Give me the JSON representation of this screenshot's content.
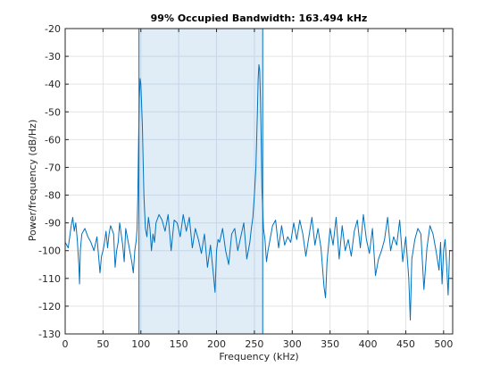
{
  "chart_data": {
    "type": "line",
    "title": "99% Occupied Bandwidth: 163.494 kHz",
    "xlabel": "Frequency (kHz)",
    "ylabel": "Power/frequency (dB/Hz)",
    "xlim": [
      0,
      512
    ],
    "ylim": [
      -130,
      -20
    ],
    "xticks": [
      0,
      50,
      100,
      150,
      200,
      250,
      300,
      350,
      400,
      450,
      500
    ],
    "yticks": [
      -20,
      -30,
      -40,
      -50,
      -60,
      -70,
      -80,
      -90,
      -100,
      -110,
      -120,
      -130
    ],
    "grid": true,
    "occupied_band": {
      "start": 97.5,
      "end": 261.0
    },
    "colors": {
      "line": "#0072bd",
      "band_fill": "#dbe9f5",
      "band_edge": "#0072bd",
      "grid": "#e3e3e3",
      "axis": "#262626"
    },
    "series": [
      {
        "x": [
          0,
          4,
          8,
          10,
          12,
          14,
          16,
          18,
          19,
          20,
          22,
          26,
          30,
          34,
          38,
          42,
          46,
          48,
          50,
          52,
          54,
          56,
          58,
          60,
          64,
          66,
          68,
          70,
          72,
          74,
          76,
          78,
          80,
          84,
          88,
          90,
          92,
          94,
          95,
          96,
          97,
          98,
          99,
          100,
          102,
          104,
          106,
          108,
          110,
          112,
          114,
          116,
          118,
          120,
          124,
          128,
          132,
          136,
          140,
          144,
          148,
          152,
          156,
          160,
          164,
          168,
          172,
          176,
          180,
          184,
          188,
          192,
          196,
          198,
          200,
          202,
          204,
          208,
          212,
          216,
          220,
          224,
          228,
          232,
          236,
          240,
          244,
          246,
          248,
          250,
          252,
          254,
          255,
          256,
          257,
          258,
          259,
          260,
          262,
          264,
          266,
          268,
          270,
          274,
          278,
          282,
          286,
          290,
          294,
          298,
          302,
          306,
          310,
          314,
          318,
          322,
          326,
          330,
          334,
          338,
          342,
          344,
          346,
          350,
          354,
          358,
          362,
          366,
          370,
          374,
          378,
          382,
          386,
          390,
          394,
          398,
          402,
          406,
          410,
          414,
          418,
          422,
          426,
          430,
          434,
          438,
          442,
          446,
          450,
          454,
          456,
          458,
          462,
          466,
          470,
          474,
          478,
          482,
          486,
          490,
          494,
          496,
          498,
          500,
          502,
          504,
          506,
          508,
          510
        ],
        "y": [
          -97,
          -99,
          -91,
          -88,
          -93,
          -90,
          -96,
          -105,
          -112,
          -100,
          -94,
          -92,
          -95,
          -97,
          -100,
          -95,
          -108,
          -102,
          -100,
          -97,
          -93,
          -99,
          -94,
          -91,
          -94,
          -106,
          -100,
          -97,
          -90,
          -94,
          -98,
          -104,
          -92,
          -98,
          -104,
          -108,
          -100,
          -96,
          -92,
          -80,
          -60,
          -45,
          -38,
          -40,
          -55,
          -80,
          -92,
          -95,
          -88,
          -92,
          -100,
          -94,
          -97,
          -90,
          -87,
          -89,
          -93,
          -87,
          -100,
          -89,
          -90,
          -95,
          -87,
          -93,
          -88,
          -99,
          -92,
          -96,
          -101,
          -94,
          -106,
          -98,
          -109,
          -115,
          -100,
          -96,
          -97,
          -92,
          -100,
          -105,
          -94,
          -92,
          -100,
          -95,
          -90,
          -103,
          -97,
          -92,
          -88,
          -80,
          -70,
          -50,
          -38,
          -33,
          -35,
          -45,
          -60,
          -78,
          -92,
          -96,
          -104,
          -100,
          -97,
          -91,
          -89,
          -99,
          -91,
          -98,
          -95,
          -97,
          -90,
          -96,
          -89,
          -94,
          -102,
          -95,
          -88,
          -98,
          -92,
          -99,
          -113,
          -117,
          -104,
          -92,
          -98,
          -88,
          -103,
          -91,
          -100,
          -96,
          -102,
          -93,
          -89,
          -99,
          -87,
          -96,
          -101,
          -92,
          -109,
          -103,
          -100,
          -96,
          -88,
          -100,
          -95,
          -98,
          -89,
          -104,
          -95,
          -110,
          -125,
          -103,
          -96,
          -92,
          -94,
          -114,
          -99,
          -91,
          -94,
          -100,
          -107,
          -97,
          -112,
          -100,
          -96,
          -105,
          -116,
          -100,
          -100
        ]
      }
    ]
  }
}
